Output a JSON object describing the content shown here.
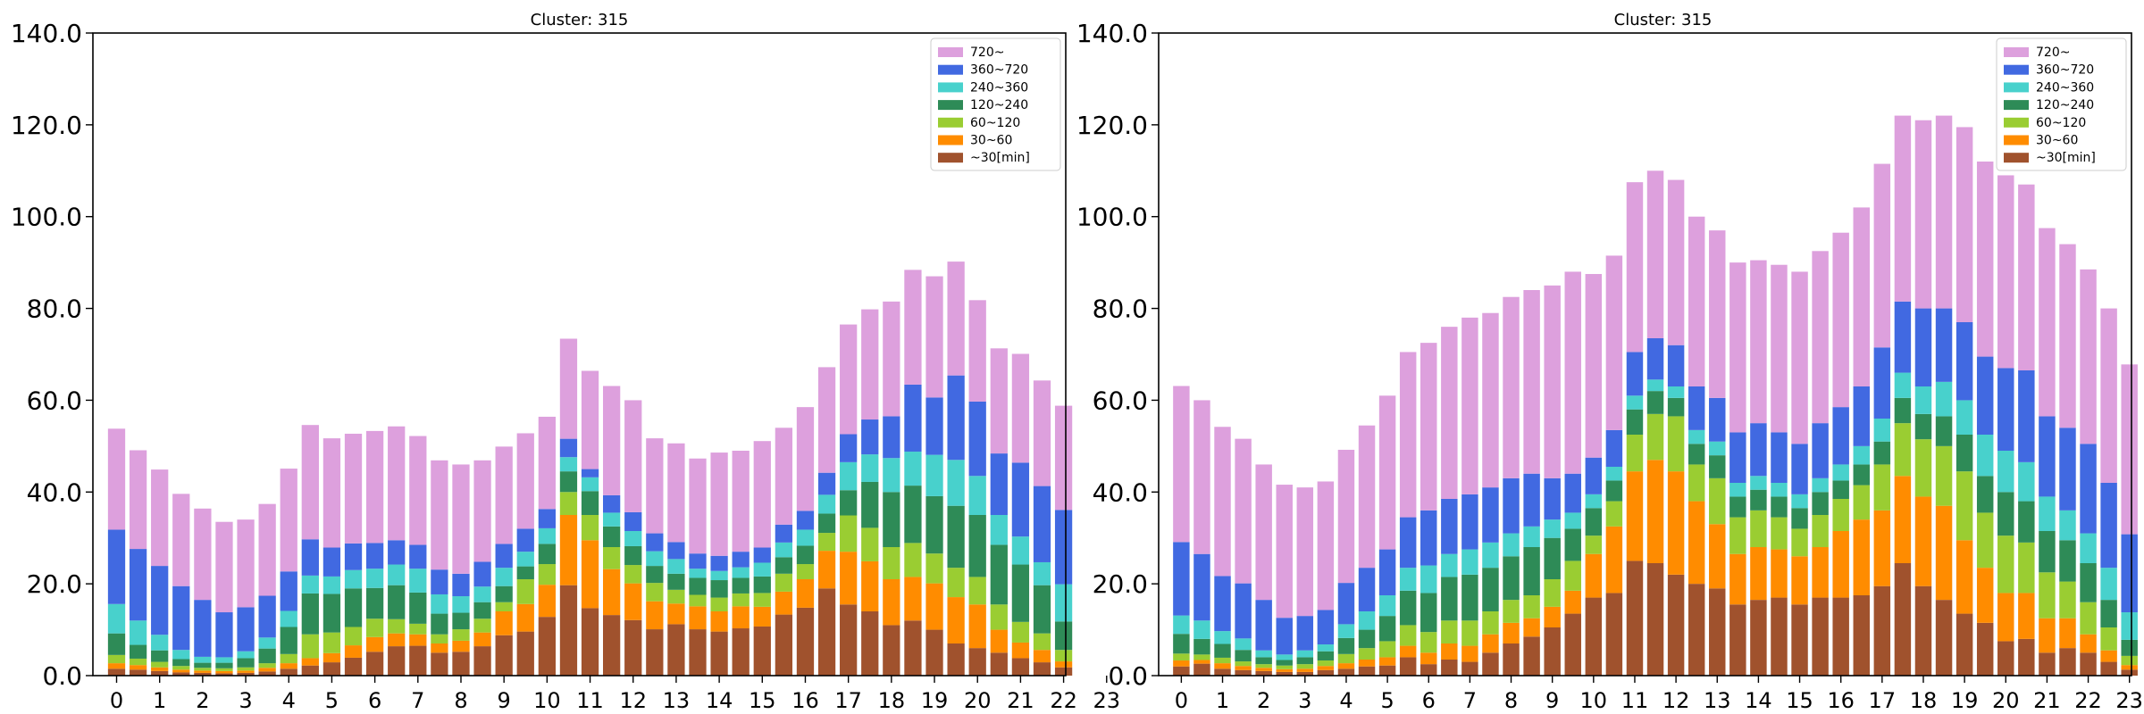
{
  "colors": {
    "720~": "#dda0dd",
    "360~720": "#4169e1",
    "240~360": "#48d1cc",
    "120~240": "#2e8b57",
    "60~120": "#9acd32",
    "30~60": "#ff8c00",
    "~30[min]": "#a0522d"
  },
  "chart_data": [
    {
      "type": "bar",
      "stacked": true,
      "title": "Cluster: 315",
      "xlabel": "",
      "ylabel": "",
      "ylim": [
        0,
        140
      ],
      "yticks": [
        "0.0",
        "20.0",
        "40.0",
        "60.0",
        "80.0",
        "100.0",
        "120.0",
        "140.0"
      ],
      "xticks": [
        "0",
        "1",
        "2",
        "3",
        "4",
        "5",
        "6",
        "7",
        "8",
        "9",
        "10",
        "11",
        "12",
        "13",
        "14",
        "15",
        "16",
        "17",
        "18",
        "19",
        "20",
        "21",
        "22",
        "23"
      ],
      "bars_per_hour": 2,
      "grid": false,
      "legend_position": "upper right",
      "series": [
        {
          "name": "~30[min]",
          "values": [
            1.5,
            1.3,
            1.0,
            0.7,
            0.6,
            0.5,
            0.6,
            0.9,
            1.5,
            2.2,
            2.9,
            3.9,
            5.2,
            6.4,
            6.5,
            5.0,
            5.2,
            6.4,
            8.8,
            9.6,
            12.8,
            19.7,
            14.7,
            13.2,
            12.1,
            10.1,
            11.2,
            10.1,
            9.6,
            10.3,
            10.7,
            13.3,
            14.8,
            19.0,
            15.5,
            14.0,
            11.0,
            12.0,
            10.0,
            7.0,
            6.0,
            5.0,
            3.8,
            2.9,
            1.8
          ]
        },
        {
          "name": "30~60",
          "values": [
            1.2,
            1.0,
            0.8,
            0.6,
            0.5,
            0.5,
            0.5,
            0.8,
            1.2,
            1.6,
            2.0,
            2.7,
            3.2,
            2.8,
            2.5,
            2.0,
            2.4,
            3.0,
            5.2,
            6.0,
            7.0,
            15.3,
            14.8,
            10.0,
            8.0,
            6.1,
            4.5,
            5.0,
            4.4,
            4.8,
            4.3,
            5.0,
            6.2,
            8.2,
            11.5,
            10.9,
            10.0,
            9.5,
            10.1,
            10.1,
            9.5,
            5.0,
            3.4,
            2.7,
            1.3
          ]
        },
        {
          "name": "60~120",
          "values": [
            1.8,
            1.4,
            1.2,
            0.8,
            0.6,
            0.6,
            0.7,
            1.0,
            2.0,
            5.2,
            4.5,
            4.0,
            4.0,
            3.1,
            2.3,
            2.0,
            2.5,
            3.0,
            2.0,
            5.4,
            4.5,
            5.0,
            5.5,
            4.8,
            4.0,
            4.0,
            3.0,
            2.5,
            3.0,
            2.8,
            3.0,
            3.9,
            3.3,
            3.9,
            7.9,
            7.3,
            7.0,
            7.4,
            6.5,
            6.4,
            6.0,
            5.5,
            4.5,
            3.6,
            2.5
          ]
        },
        {
          "name": "120~240",
          "values": [
            4.7,
            3.0,
            2.5,
            1.5,
            1.1,
            1.2,
            2.0,
            3.2,
            5.9,
            8.9,
            8.4,
            8.4,
            6.7,
            7.4,
            6.8,
            4.5,
            3.6,
            3.6,
            3.5,
            2.8,
            4.4,
            4.5,
            5.2,
            4.5,
            4.1,
            3.7,
            3.5,
            3.7,
            3.8,
            3.4,
            3.6,
            3.6,
            4.0,
            4.2,
            5.5,
            10.0,
            12.0,
            12.5,
            12.5,
            13.5,
            13.5,
            13.0,
            12.5,
            10.5,
            6.2
          ]
        },
        {
          "name": "240~360",
          "values": [
            6.4,
            5.3,
            3.4,
            2.0,
            1.3,
            1.2,
            1.5,
            2.4,
            3.5,
            3.9,
            3.8,
            4.0,
            4.2,
            4.5,
            5.2,
            4.2,
            3.6,
            3.4,
            4.0,
            3.2,
            3.4,
            3.1,
            3.0,
            3.0,
            3.3,
            3.2,
            3.2,
            2.0,
            2.0,
            2.3,
            3.0,
            3.2,
            3.5,
            4.1,
            6.1,
            6.0,
            7.4,
            7.4,
            9.0,
            10.0,
            8.5,
            6.5,
            6.1,
            5.0,
            8.1
          ]
        },
        {
          "name": "360~720",
          "values": [
            16.2,
            15.6,
            15.0,
            13.9,
            12.4,
            9.8,
            9.6,
            9.1,
            8.6,
            7.9,
            6.3,
            5.8,
            5.6,
            5.3,
            5.2,
            5.4,
            4.9,
            5.4,
            5.2,
            5.0,
            4.2,
            4.0,
            1.8,
            3.8,
            4.1,
            3.9,
            3.7,
            3.3,
            3.3,
            3.4,
            3.3,
            3.9,
            4.1,
            4.8,
            6.1,
            7.6,
            9.1,
            14.6,
            12.5,
            18.4,
            16.2,
            13.4,
            16.1,
            16.6,
            16.2
          ]
        },
        {
          "name": "720~",
          "values": [
            22.0,
            21.5,
            21.0,
            20.1,
            19.9,
            19.7,
            19.1,
            20.0,
            22.4,
            24.9,
            23.8,
            23.9,
            24.4,
            24.8,
            23.7,
            23.8,
            23.8,
            22.1,
            21.2,
            20.8,
            20.1,
            21.8,
            21.4,
            23.8,
            24.4,
            20.7,
            21.5,
            20.7,
            22.5,
            22.0,
            23.2,
            21.1,
            22.6,
            23.0,
            23.9,
            24.0,
            25.0,
            25.0,
            26.4,
            24.8,
            22.1,
            22.9,
            23.7,
            23.0,
            22.7
          ]
        }
      ]
    },
    {
      "type": "bar",
      "stacked": true,
      "title": "Cluster: 315",
      "xlabel": "",
      "ylabel": "",
      "ylim": [
        0,
        140
      ],
      "yticks": [
        "0.0",
        "20.0",
        "40.0",
        "60.0",
        "80.0",
        "100.0",
        "120.0",
        "140.0"
      ],
      "xticks": [
        "0",
        "1",
        "2",
        "3",
        "4",
        "5",
        "6",
        "7",
        "8",
        "9",
        "10",
        "11",
        "12",
        "13",
        "14",
        "15",
        "16",
        "17",
        "18",
        "19",
        "20",
        "21",
        "22",
        "23"
      ],
      "bars_per_hour": 2,
      "grid": false,
      "legend_position": "upper right",
      "series": [
        {
          "name": "~30[min]",
          "values": [
            2.0,
            2.6,
            1.5,
            1.2,
            1.0,
            0.8,
            0.8,
            1.2,
            1.5,
            2.0,
            2.2,
            4.0,
            2.5,
            3.5,
            3.0,
            5.0,
            7.0,
            8.5,
            10.5,
            13.5,
            17.0,
            18.0,
            25.0,
            24.5,
            22.0,
            20.0,
            19.0,
            15.5,
            16.5,
            17.0,
            15.5,
            17.0,
            17.0,
            17.5,
            19.5,
            24.5,
            19.5,
            16.5,
            13.5,
            11.5,
            7.5,
            8.0,
            5.0,
            6.0,
            5.0,
            3.0,
            1.3
          ]
        },
        {
          "name": "30~60",
          "values": [
            1.3,
            0.8,
            1.2,
            0.9,
            0.7,
            0.6,
            0.7,
            0.9,
            1.2,
            1.5,
            1.8,
            2.5,
            2.5,
            3.5,
            3.5,
            4.0,
            4.5,
            4.0,
            4.5,
            5.0,
            9.5,
            14.5,
            19.5,
            22.5,
            22.5,
            18.0,
            14.0,
            11.0,
            11.5,
            10.5,
            10.5,
            11.0,
            14.5,
            16.5,
            16.5,
            19.0,
            19.5,
            20.5,
            16.0,
            12.0,
            10.5,
            10.0,
            7.5,
            6.5,
            4.0,
            2.5,
            1.0
          ]
        },
        {
          "name": "60~120",
          "values": [
            1.5,
            1.2,
            1.2,
            1.0,
            0.8,
            0.8,
            1.0,
            1.2,
            2.0,
            2.5,
            3.5,
            4.5,
            4.5,
            5.0,
            5.5,
            5.0,
            5.0,
            5.0,
            6.0,
            6.5,
            4.0,
            5.5,
            8.0,
            10.0,
            12.0,
            8.0,
            10.0,
            8.0,
            8.0,
            7.0,
            6.0,
            7.0,
            7.0,
            7.5,
            10.0,
            11.5,
            12.5,
            13.0,
            15.0,
            12.0,
            12.5,
            11.0,
            10.0,
            8.0,
            7.0,
            5.0,
            2.0
          ]
        },
        {
          "name": "120~240",
          "values": [
            4.3,
            3.4,
            3.0,
            2.5,
            1.5,
            1.2,
            1.5,
            2.0,
            3.5,
            4.0,
            5.5,
            7.5,
            8.5,
            9.5,
            10.0,
            9.5,
            9.5,
            10.5,
            9.0,
            7.0,
            6.0,
            4.5,
            5.5,
            5.0,
            4.0,
            4.5,
            5.0,
            4.5,
            4.5,
            4.5,
            4.5,
            5.0,
            4.0,
            4.5,
            5.0,
            5.5,
            5.5,
            6.5,
            8.0,
            8.0,
            9.5,
            9.0,
            9.0,
            9.0,
            8.5,
            6.0,
            3.5
          ]
        },
        {
          "name": "240~360",
          "values": [
            4.0,
            4.0,
            2.8,
            2.5,
            1.5,
            1.2,
            1.5,
            1.5,
            3.0,
            4.0,
            4.5,
            5.0,
            6.0,
            5.0,
            5.5,
            5.5,
            5.0,
            4.5,
            4.0,
            3.5,
            3.0,
            3.0,
            3.0,
            2.5,
            2.5,
            3.0,
            3.0,
            3.0,
            3.0,
            3.0,
            3.0,
            3.0,
            3.5,
            4.0,
            5.0,
            5.5,
            6.0,
            7.5,
            7.5,
            9.0,
            9.0,
            8.5,
            7.5,
            6.5,
            6.5,
            7.0,
            6.0
          ]
        },
        {
          "name": "360~720",
          "values": [
            16.0,
            14.5,
            12.0,
            12.0,
            11.0,
            8.0,
            7.5,
            7.5,
            9.0,
            9.5,
            10.0,
            11.0,
            12.0,
            12.0,
            12.0,
            12.0,
            12.0,
            11.5,
            9.0,
            8.5,
            8.0,
            8.0,
            9.5,
            9.0,
            9.0,
            9.5,
            9.5,
            11.0,
            11.5,
            11.0,
            11.0,
            12.0,
            12.5,
            13.0,
            15.5,
            15.5,
            17.0,
            16.0,
            17.0,
            17.0,
            18.0,
            20.0,
            17.5,
            18.0,
            19.5,
            18.5,
            17.0
          ]
        },
        {
          "name": "720~",
          "values": [
            34.0,
            33.5,
            32.5,
            31.5,
            29.5,
            29.0,
            28.0,
            28.0,
            29.0,
            31.0,
            33.5,
            36.0,
            36.5,
            37.5,
            38.5,
            38.0,
            39.5,
            40.0,
            42.0,
            44.0,
            40.0,
            38.0,
            37.0,
            36.5,
            36.0,
            37.0,
            36.5,
            37.0,
            35.5,
            36.5,
            37.5,
            37.5,
            38.0,
            39.0,
            40.0,
            40.5,
            41.0,
            42.0,
            42.5,
            42.5,
            42.0,
            40.5,
            41.0,
            40.0,
            38.0,
            38.0,
            37.0
          ]
        }
      ]
    }
  ]
}
